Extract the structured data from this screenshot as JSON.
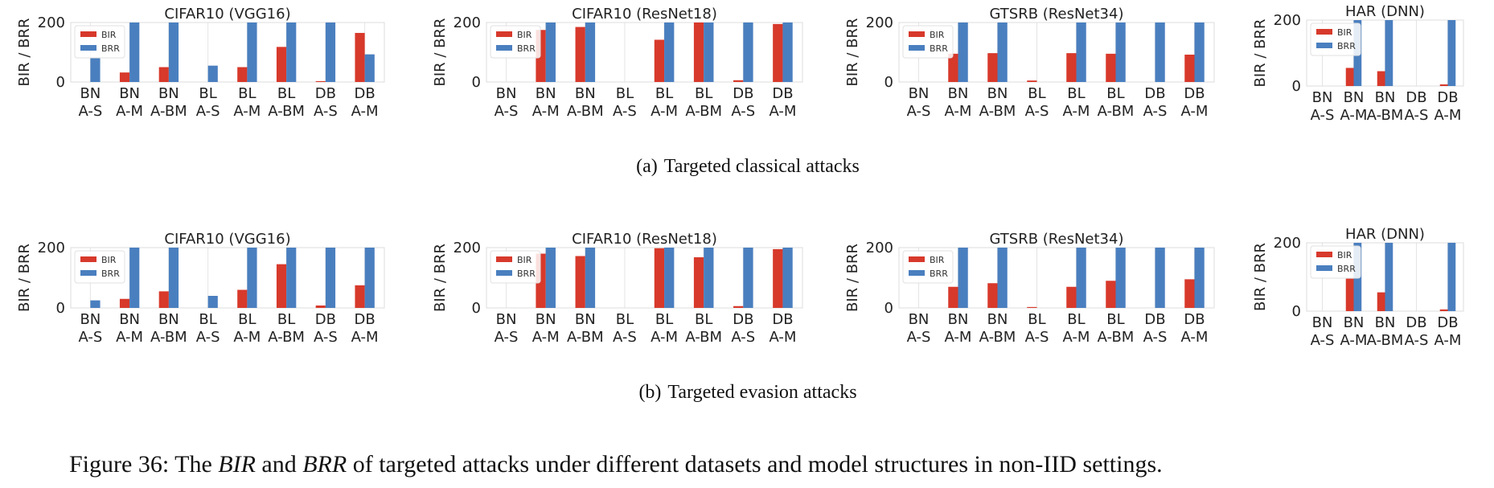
{
  "colors": {
    "BIR": "#d7392b",
    "BRR": "#4a7fbf"
  },
  "panels": [
    {
      "label": "(a)",
      "caption": "Targeted classical attacks",
      "charts": [
        {
          "type": "bar",
          "title": "CIFAR10 (VGG16)",
          "ylabel": "BIR / BRR",
          "ylim": [
            0,
            200
          ],
          "yticks": [
            0,
            200
          ],
          "legend": "top-left",
          "categories": [
            [
              "BN",
              "A-S"
            ],
            [
              "BN",
              "A-M"
            ],
            [
              "BN",
              "A-BM"
            ],
            [
              "BL",
              "A-S"
            ],
            [
              "BL",
              "A-M"
            ],
            [
              "BL",
              "A-BM"
            ],
            [
              "DB",
              "A-S"
            ],
            [
              "DB",
              "A-M"
            ]
          ],
          "series": [
            {
              "name": "BIR",
              "values": [
                0,
                32,
                50,
                0,
                50,
                118,
                3,
                165
              ]
            },
            {
              "name": "BRR",
              "values": [
                82,
                200,
                200,
                55,
                200,
                200,
                200,
                93
              ]
            }
          ]
        },
        {
          "type": "bar",
          "title": "CIFAR10 (ResNet18)",
          "ylabel": "BIR / BRR",
          "ylim": [
            0,
            200
          ],
          "yticks": [
            0,
            200
          ],
          "legend": "top-left",
          "categories": [
            [
              "BN",
              "A-S"
            ],
            [
              "BN",
              "A-M"
            ],
            [
              "BN",
              "A-BM"
            ],
            [
              "BL",
              "A-S"
            ],
            [
              "BL",
              "A-M"
            ],
            [
              "BL",
              "A-BM"
            ],
            [
              "DB",
              "A-S"
            ],
            [
              "DB",
              "A-M"
            ]
          ],
          "series": [
            {
              "name": "BIR",
              "values": [
                0,
                175,
                185,
                0,
                142,
                200,
                6,
                195
              ]
            },
            {
              "name": "BRR",
              "values": [
                0,
                200,
                200,
                0,
                200,
                200,
                200,
                200
              ]
            }
          ]
        },
        {
          "type": "bar",
          "title": "GTSRB (ResNet34)",
          "ylabel": "BIR / BRR",
          "ylim": [
            0,
            200
          ],
          "yticks": [
            0,
            200
          ],
          "legend": "top-left",
          "categories": [
            [
              "BN",
              "A-S"
            ],
            [
              "BN",
              "A-M"
            ],
            [
              "BN",
              "A-BM"
            ],
            [
              "BL",
              "A-S"
            ],
            [
              "BL",
              "A-M"
            ],
            [
              "BL",
              "A-BM"
            ],
            [
              "DB",
              "A-S"
            ],
            [
              "DB",
              "A-M"
            ]
          ],
          "series": [
            {
              "name": "BIR",
              "values": [
                0,
                95,
                97,
                5,
                97,
                95,
                0,
                92
              ]
            },
            {
              "name": "BRR",
              "values": [
                0,
                200,
                200,
                0,
                200,
                200,
                200,
                200
              ]
            }
          ]
        },
        {
          "type": "bar",
          "title": "HAR (DNN)",
          "ylabel": "BIR / BRR",
          "ylim": [
            0,
            200
          ],
          "yticks": [
            0,
            200
          ],
          "legend": "top-left",
          "categories": [
            [
              "BN",
              "A-S"
            ],
            [
              "BN",
              "A-M"
            ],
            [
              "BN",
              "A-BM"
            ],
            [
              "DB",
              "A-S"
            ],
            [
              "DB",
              "A-M"
            ]
          ],
          "series": [
            {
              "name": "BIR",
              "values": [
                0,
                55,
                45,
                0,
                5
              ]
            },
            {
              "name": "BRR",
              "values": [
                0,
                200,
                200,
                0,
                200
              ]
            }
          ]
        }
      ]
    },
    {
      "label": "(b)",
      "caption": "Targeted evasion attacks",
      "charts": [
        {
          "type": "bar",
          "title": "CIFAR10 (VGG16)",
          "ylabel": "BIR / BRR",
          "ylim": [
            0,
            200
          ],
          "yticks": [
            0,
            200
          ],
          "legend": "top-left",
          "categories": [
            [
              "BN",
              "A-S"
            ],
            [
              "BN",
              "A-M"
            ],
            [
              "BN",
              "A-BM"
            ],
            [
              "BL",
              "A-S"
            ],
            [
              "BL",
              "A-M"
            ],
            [
              "BL",
              "A-BM"
            ],
            [
              "DB",
              "A-S"
            ],
            [
              "DB",
              "A-M"
            ]
          ],
          "series": [
            {
              "name": "BIR",
              "values": [
                0,
                30,
                55,
                0,
                60,
                145,
                8,
                75
              ]
            },
            {
              "name": "BRR",
              "values": [
                25,
                200,
                200,
                40,
                200,
                200,
                200,
                200
              ]
            }
          ]
        },
        {
          "type": "bar",
          "title": "CIFAR10 (ResNet18)",
          "ylabel": "BIR / BRR",
          "ylim": [
            0,
            200
          ],
          "yticks": [
            0,
            200
          ],
          "legend": "top-left",
          "categories": [
            [
              "BN",
              "A-S"
            ],
            [
              "BN",
              "A-M"
            ],
            [
              "BN",
              "A-BM"
            ],
            [
              "BL",
              "A-S"
            ],
            [
              "BL",
              "A-M"
            ],
            [
              "BL",
              "A-BM"
            ],
            [
              "DB",
              "A-S"
            ],
            [
              "DB",
              "A-M"
            ]
          ],
          "series": [
            {
              "name": "BIR",
              "values": [
                0,
                180,
                172,
                0,
                198,
                168,
                6,
                195
              ]
            },
            {
              "name": "BRR",
              "values": [
                0,
                200,
                200,
                0,
                200,
                200,
                200,
                200
              ]
            }
          ]
        },
        {
          "type": "bar",
          "title": "GTSRB (ResNet34)",
          "ylabel": "BIR / BRR",
          "ylim": [
            0,
            200
          ],
          "yticks": [
            0,
            200
          ],
          "legend": "top-left",
          "categories": [
            [
              "BN",
              "A-S"
            ],
            [
              "BN",
              "A-M"
            ],
            [
              "BN",
              "A-BM"
            ],
            [
              "BL",
              "A-S"
            ],
            [
              "BL",
              "A-M"
            ],
            [
              "BL",
              "A-BM"
            ],
            [
              "DB",
              "A-S"
            ],
            [
              "DB",
              "A-M"
            ]
          ],
          "series": [
            {
              "name": "BIR",
              "values": [
                0,
                70,
                82,
                3,
                70,
                90,
                0,
                95
              ]
            },
            {
              "name": "BRR",
              "values": [
                0,
                200,
                200,
                0,
                200,
                200,
                200,
                200
              ]
            }
          ]
        },
        {
          "type": "bar",
          "title": "HAR (DNN)",
          "ylabel": "BIR / BRR",
          "ylim": [
            0,
            200
          ],
          "yticks": [
            0,
            200
          ],
          "legend": "top-left",
          "categories": [
            [
              "BN",
              "A-S"
            ],
            [
              "BN",
              "A-M"
            ],
            [
              "BN",
              "A-BM"
            ],
            [
              "DB",
              "A-S"
            ],
            [
              "DB",
              "A-M"
            ]
          ],
          "series": [
            {
              "name": "BIR",
              "values": [
                0,
                95,
                55,
                0,
                5
              ]
            },
            {
              "name": "BRR",
              "values": [
                0,
                200,
                200,
                0,
                200
              ]
            }
          ]
        }
      ]
    }
  ],
  "caption": {
    "prefix": "Figure 36: The ",
    "term1": "BIR",
    "mid": " and ",
    "term2": "BRR",
    "suffix": " of targeted attacks under different datasets and model structures in non-IID settings."
  }
}
